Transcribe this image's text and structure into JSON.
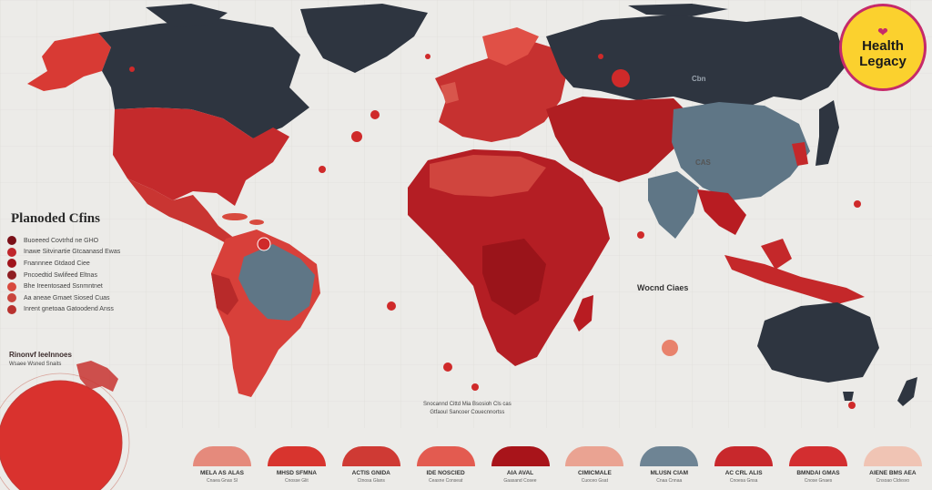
{
  "legend": {
    "title": "Planoded Cfins",
    "items": [
      {
        "text": "Buoeeed Covtrhd ne GHO",
        "color": "#7a1018"
      },
      {
        "text": "Inawe Sitvinartie Gtcaanasd Ewas",
        "color": "#c0262c"
      },
      {
        "text": "Fnannnee Gtdaod Ciee",
        "color": "#a0141c"
      },
      {
        "text": "Pncoedtid Swlifeed Eltnas",
        "color": "#8e1e22"
      },
      {
        "text": "Bhe Ireentosaed Ssnmntnet",
        "color": "#d84a3e"
      },
      {
        "text": "Aa aneae Gmaet Siosed Cuas",
        "color": "#c9453d"
      },
      {
        "text": "Inrent gnetoaa Gatoodend Anss",
        "color": "#b8322f"
      }
    ]
  },
  "inset": {
    "title": "Rinonvf Ieelnnoes",
    "subtitle": "Wsaee Wsned Snaits"
  },
  "labels": {
    "world": "Wocnd Ciaes",
    "asia": "CAS",
    "russia": "Cbn",
    "center_note_1": "Snocannd Cittd Mia Bsosioh Cls cas",
    "center_note_2": "Gtfaoul Sancoer Couecnnortss"
  },
  "strip": [
    {
      "label": "MELA AS ALAS",
      "sub": "Cnaea Gnas Sl",
      "color": "#e58a7c"
    },
    {
      "label": "MHSD SFMNA",
      "sub": "Cnosse Glit",
      "color": "#d8342e"
    },
    {
      "label": "ACTIS GNIDA",
      "sub": "Ctnosa Glans",
      "color": "#cf3a34"
    },
    {
      "label": "IDE NOSCIED",
      "sub": "Ceasne Conseat",
      "color": "#e35b50"
    },
    {
      "label": "AIA AVAL",
      "sub": "Gaasand Cosee",
      "color": "#a8141a"
    },
    {
      "label": "CIMICMALE",
      "sub": "Cuoceo Gsat",
      "color": "#eaa392"
    },
    {
      "label": "MLUSN CIAM",
      "sub": "Cnaa Cnnaa",
      "color": "#6e8494"
    },
    {
      "label": "AC CRL ALIS",
      "sub": "Cnoesa Gnsa",
      "color": "#c8282c"
    },
    {
      "label": "BMNDAI GMAS",
      "sub": "Cnose Gnaes",
      "color": "#d32e30"
    },
    {
      "label": "AIENE BMS AEA",
      "sub": "Cnsoao Cldvsvo",
      "color": "#f0c4b4"
    }
  ],
  "logo": {
    "line1": "Health",
    "line2": "Legacy",
    "icon": "heart-hands-icon"
  },
  "colors": {
    "background": "#ecebe8",
    "dark_land": "#2e3540",
    "slate_blue": "#5f7686",
    "red_1": "#c42a2c",
    "red_2": "#a8141a",
    "red_3": "#e0534a",
    "logo_yellow": "#fbd12e",
    "logo_ring": "#c62a6a"
  }
}
